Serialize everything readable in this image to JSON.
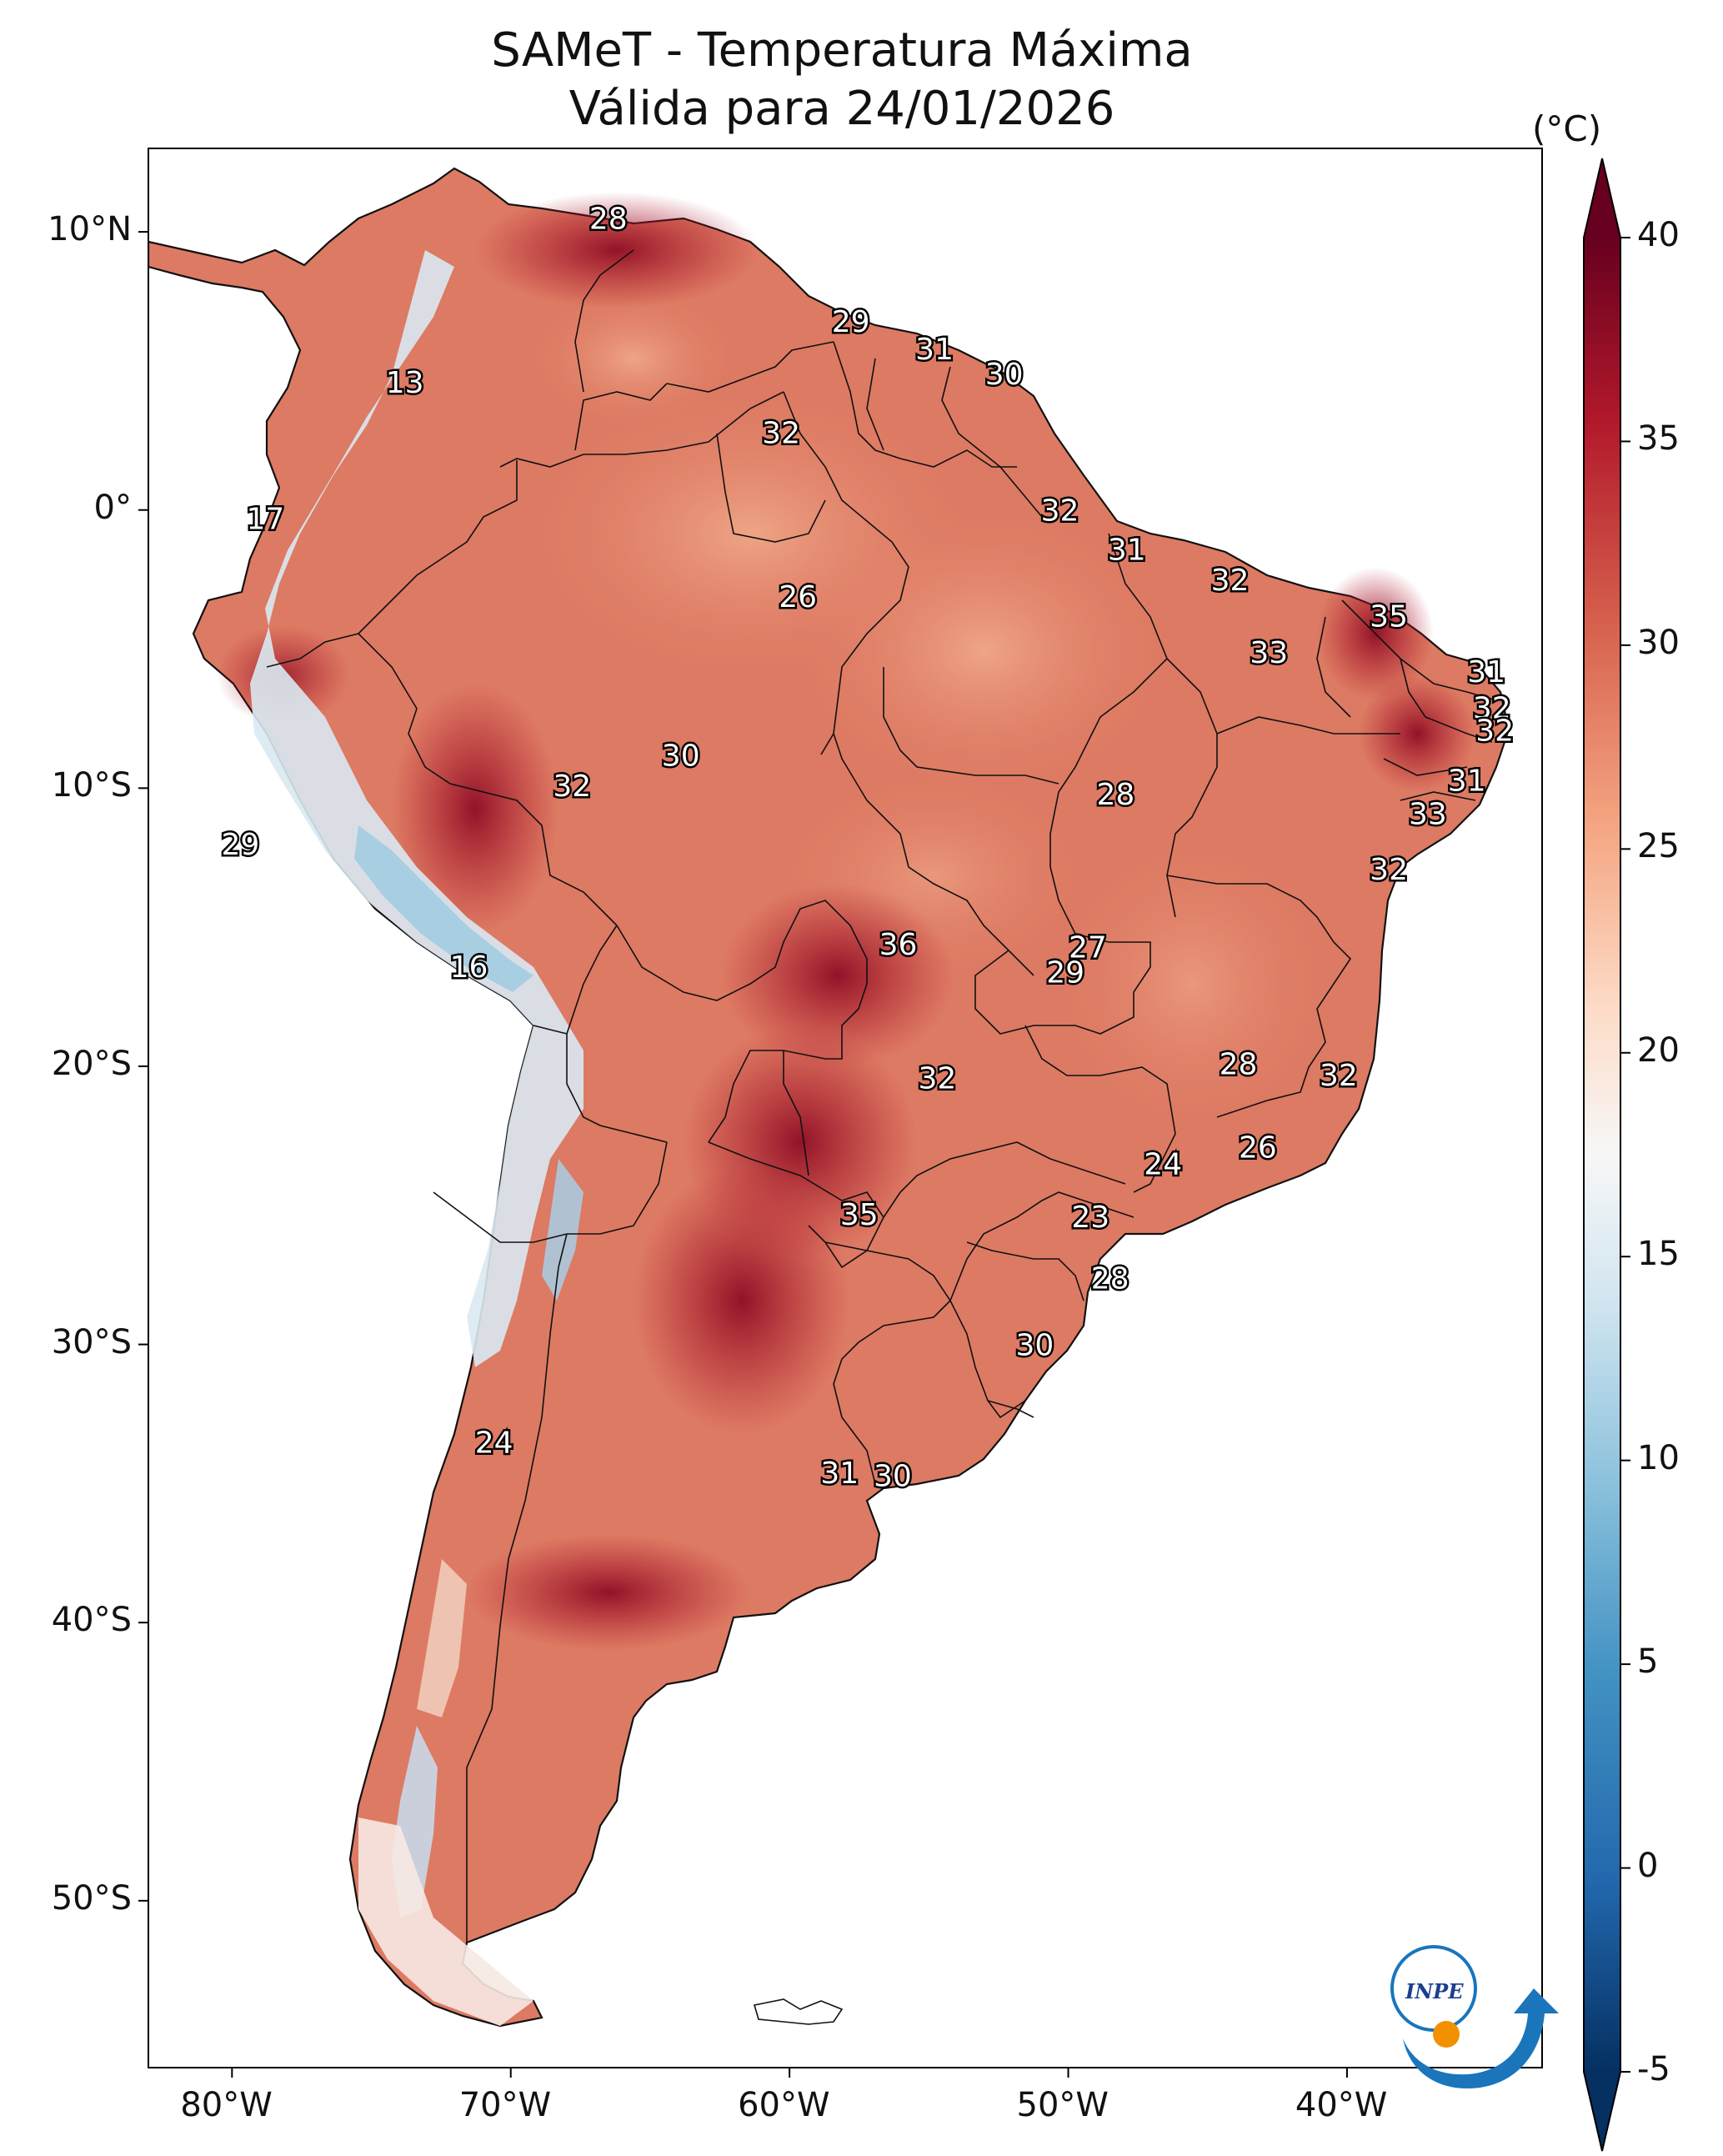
{
  "title": {
    "line1": "SAMeT - Temperatura Máxima",
    "line2": "Válida para 24/01/2026"
  },
  "map": {
    "lon_range": [
      -83,
      -33
    ],
    "lat_range": [
      -56,
      13
    ],
    "lon_ticks": [
      "80°W",
      "70°W",
      "60°W",
      "50°W",
      "40°W"
    ],
    "lat_ticks": [
      "10°N",
      "0°",
      "10°S",
      "20°S",
      "30°S",
      "40°S",
      "50°S"
    ],
    "point_labels": [
      {
        "lon": -66.5,
        "lat": 10.5,
        "value": "28"
      },
      {
        "lon": -73.8,
        "lat": 4.6,
        "value": "13"
      },
      {
        "lon": -57.8,
        "lat": 6.8,
        "value": "29"
      },
      {
        "lon": -54.8,
        "lat": 5.8,
        "value": "31"
      },
      {
        "lon": -52.3,
        "lat": 4.9,
        "value": "30"
      },
      {
        "lon": -60.3,
        "lat": 2.8,
        "value": "32"
      },
      {
        "lon": -78.8,
        "lat": -0.3,
        "value": "17"
      },
      {
        "lon": -50.3,
        "lat": 0.0,
        "value": "32"
      },
      {
        "lon": -47.9,
        "lat": -1.4,
        "value": "31"
      },
      {
        "lon": -44.2,
        "lat": -2.5,
        "value": "32"
      },
      {
        "lon": -38.5,
        "lat": -3.8,
        "value": "35"
      },
      {
        "lon": -59.7,
        "lat": -3.1,
        "value": "26"
      },
      {
        "lon": -42.8,
        "lat": -5.1,
        "value": "33"
      },
      {
        "lon": -35.0,
        "lat": -5.8,
        "value": "31"
      },
      {
        "lon": -34.8,
        "lat": -7.1,
        "value": "32"
      },
      {
        "lon": -34.7,
        "lat": -7.9,
        "value": "32"
      },
      {
        "lon": -63.9,
        "lat": -8.8,
        "value": "30"
      },
      {
        "lon": -67.8,
        "lat": -9.9,
        "value": "32"
      },
      {
        "lon": -35.7,
        "lat": -9.7,
        "value": "31"
      },
      {
        "lon": -48.3,
        "lat": -10.2,
        "value": "28"
      },
      {
        "lon": -37.1,
        "lat": -10.9,
        "value": "33"
      },
      {
        "lon": -79.7,
        "lat": -12.0,
        "value": "29"
      },
      {
        "lon": -38.5,
        "lat": -12.9,
        "value": "32"
      },
      {
        "lon": -56.1,
        "lat": -15.6,
        "value": "36"
      },
      {
        "lon": -49.3,
        "lat": -15.7,
        "value": "27"
      },
      {
        "lon": -71.5,
        "lat": -16.4,
        "value": "16"
      },
      {
        "lon": -50.1,
        "lat": -16.6,
        "value": "29"
      },
      {
        "lon": -43.9,
        "lat": -19.9,
        "value": "28"
      },
      {
        "lon": -54.7,
        "lat": -20.4,
        "value": "32"
      },
      {
        "lon": -40.3,
        "lat": -20.3,
        "value": "32"
      },
      {
        "lon": -43.2,
        "lat": -22.9,
        "value": "26"
      },
      {
        "lon": -46.6,
        "lat": -23.5,
        "value": "24"
      },
      {
        "lon": -57.5,
        "lat": -25.3,
        "value": "35"
      },
      {
        "lon": -49.2,
        "lat": -25.4,
        "value": "23"
      },
      {
        "lon": -48.5,
        "lat": -27.6,
        "value": "28"
      },
      {
        "lon": -51.2,
        "lat": -30.0,
        "value": "30"
      },
      {
        "lon": -70.6,
        "lat": -33.5,
        "value": "24"
      },
      {
        "lon": -58.2,
        "lat": -34.6,
        "value": "31"
      },
      {
        "lon": -56.3,
        "lat": -34.7,
        "value": "30"
      }
    ]
  },
  "colorbar": {
    "unit": "(°C)",
    "min": -5,
    "max": 40,
    "ticks": [
      "40",
      "35",
      "30",
      "25",
      "20",
      "15",
      "10",
      "5",
      "0",
      "-5"
    ],
    "colors": [
      "#053061",
      "#2166ac",
      "#4393c3",
      "#92c5de",
      "#d1e5f0",
      "#f7f7f7",
      "#fddbc7",
      "#f4a582",
      "#d6604d",
      "#b2182b",
      "#67001f"
    ]
  },
  "logo": {
    "text": "INPE"
  }
}
